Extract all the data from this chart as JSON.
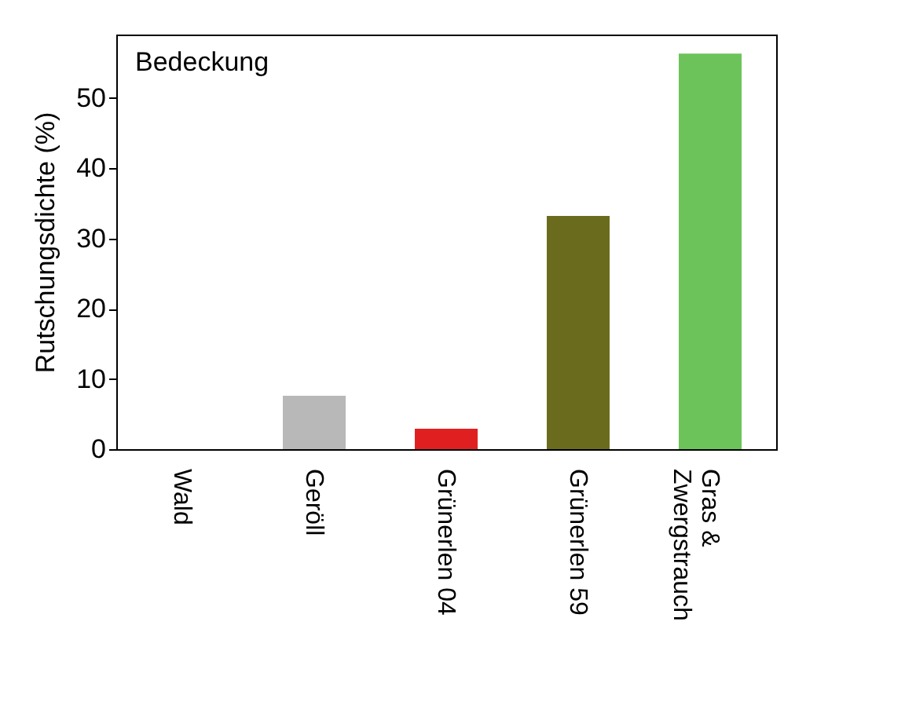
{
  "chart_data": {
    "type": "bar",
    "ylabel": "Rutschungsdichte (%)",
    "annotations": [
      "Bedeckung"
    ],
    "categories": [
      "Wald",
      "Geröll",
      "Grünerlen 04",
      "Grünerlen 59",
      "Gras & Zwergstrauch"
    ],
    "values": [
      0,
      7.6,
      2.9,
      33.2,
      56.3
    ],
    "colors": [
      "#7a7a7a",
      "#b8b8b8",
      "#e02020",
      "#6b6b1e",
      "#6cc35a"
    ],
    "ylim": [
      0,
      59
    ],
    "yticks": [
      0,
      10,
      20,
      30,
      40,
      50
    ],
    "grid": false
  }
}
